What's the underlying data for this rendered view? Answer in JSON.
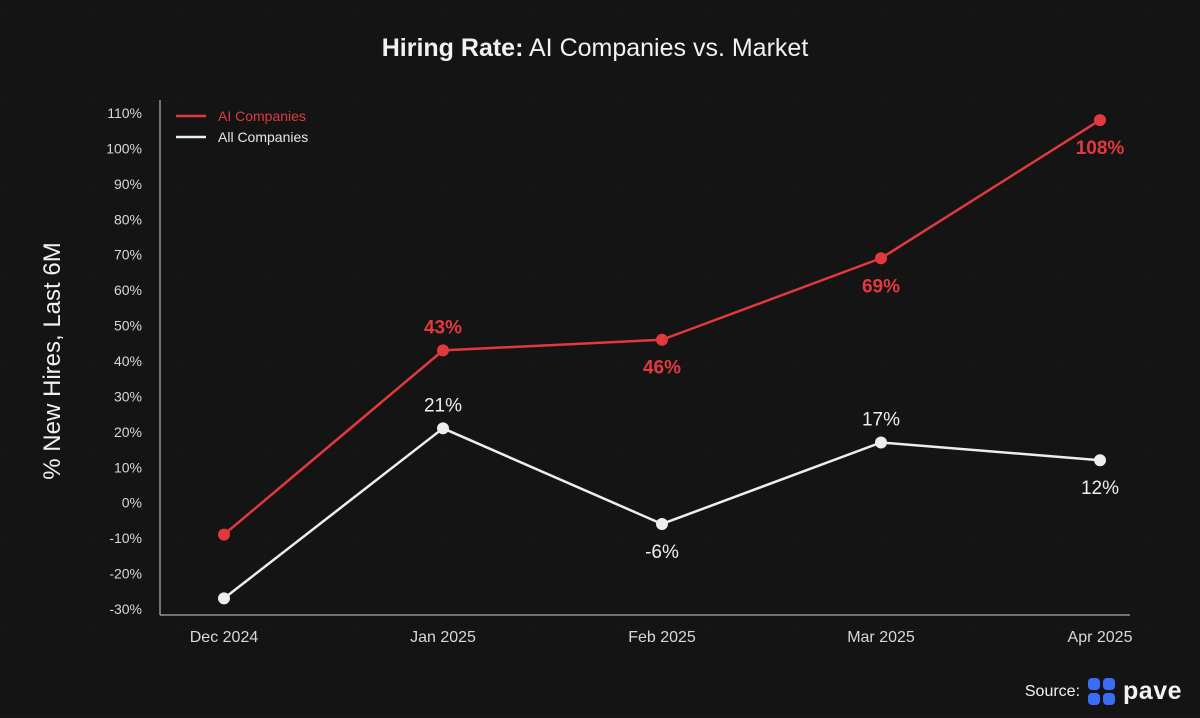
{
  "chart_data": {
    "type": "line",
    "title_bold": "Hiring Rate:",
    "title_rest": "AI Companies vs. Market",
    "ylabel": "% New Hires, Last 6M",
    "xlabel": "",
    "categories": [
      "Dec 2024",
      "Jan 2025",
      "Feb 2025",
      "Mar 2025",
      "Apr 2025"
    ],
    "ylim": [
      -30,
      110
    ],
    "y_ticks": [
      "110%",
      "100%",
      "90%",
      "80%",
      "70%",
      "60%",
      "50%",
      "40%",
      "30%",
      "20%",
      "10%",
      "0%",
      "-10%",
      "-20%",
      "-30%"
    ],
    "y_tick_values": [
      110,
      100,
      90,
      80,
      70,
      60,
      50,
      40,
      30,
      20,
      10,
      0,
      -10,
      -20,
      -30
    ],
    "legend_position": "top-left",
    "series": [
      {
        "name": "AI Companies",
        "color": "#e2393f",
        "values": [
          -9,
          43,
          46,
          69,
          108
        ],
        "labels": [
          "",
          "43%",
          "46%",
          "69%",
          "108%"
        ],
        "label_positions": [
          "",
          "above",
          "below",
          "below",
          "below"
        ]
      },
      {
        "name": "All Companies",
        "color": "#eeeeee",
        "values": [
          -27,
          21,
          -6,
          17,
          12
        ],
        "labels": [
          "",
          "21%",
          "-6%",
          "17%",
          "12%"
        ],
        "label_positions": [
          "",
          "above",
          "below",
          "above",
          "below"
        ]
      }
    ]
  },
  "source": {
    "label": "Source:",
    "brand": "pave"
  },
  "colors": {
    "background": "#141414",
    "axis": "#cfcfcf",
    "brand_blue": "#3b6cf6"
  }
}
